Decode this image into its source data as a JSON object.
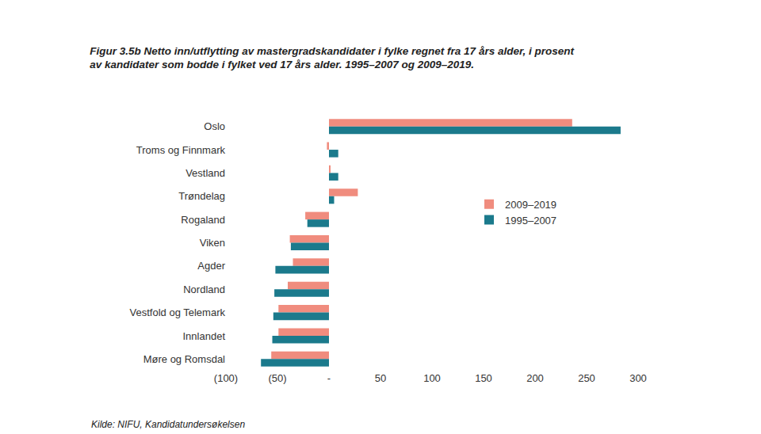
{
  "chart_data": {
    "type": "bar",
    "orientation": "horizontal",
    "title": "Figur 3.5b Netto inn/utflytting av mastergradskandidater i fylke regnet fra 17 års alder, i prosent av kandidater som bodde i fylket ved 17 års alder. 1995–2007 og 2009–2019.",
    "source": "Kilde: NIFU, Kandidatundersøkelsen",
    "categories": [
      "Oslo",
      "Troms og Finnmark",
      "Vestland",
      "Trøndelag",
      "Rogaland",
      "Viken",
      "Agder",
      "Nordland",
      "Vestfold og Telemark",
      "Innlandet",
      "Møre og Romsdal"
    ],
    "series": [
      {
        "name": "2009–2019",
        "color": "#f08c7e",
        "values": [
          236,
          -2,
          1,
          28,
          -23,
          -38,
          -35,
          -40,
          -49,
          -49,
          -56
        ]
      },
      {
        "name": "1995–2007",
        "color": "#1b7a8c",
        "values": [
          283,
          9,
          9,
          5,
          -21,
          -37,
          -52,
          -53,
          -54,
          -55,
          -66
        ]
      }
    ],
    "xlim": [
      -100,
      300
    ],
    "xticks": [
      {
        "value": -100,
        "label": "(100)"
      },
      {
        "value": -50,
        "label": "(50)"
      },
      {
        "value": 0,
        "label": "-"
      },
      50,
      100,
      150,
      200,
      250,
      300
    ],
    "grid": false,
    "legend": "right"
  }
}
